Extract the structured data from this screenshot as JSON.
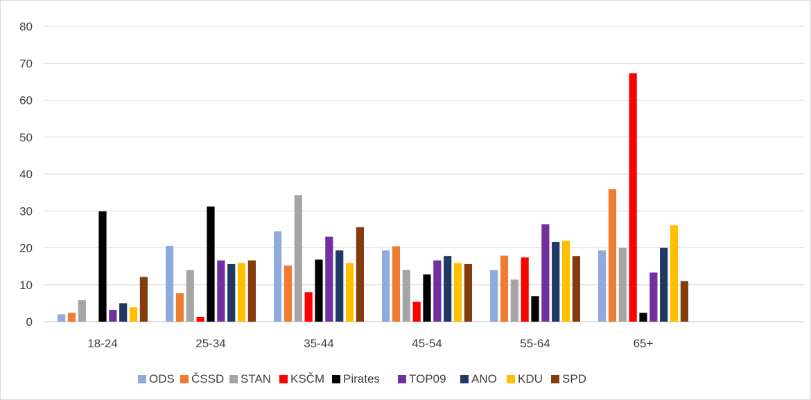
{
  "chart_data": {
    "type": "bar",
    "title": "",
    "xlabel": "",
    "ylabel": "",
    "ylim": [
      0,
      80
    ],
    "yticks": [
      0,
      10,
      20,
      30,
      40,
      50,
      60,
      70,
      80
    ],
    "grid": true,
    "legend_position": "bottom",
    "categories": [
      "18-24",
      "25-34",
      "35-44",
      "45-54",
      "55-64",
      "65+"
    ],
    "series": [
      {
        "name": "ODS",
        "color": "#8faadc",
        "values": [
          2,
          20.5,
          24.5,
          19.3,
          14,
          19.3
        ]
      },
      {
        "name": "ČSSD",
        "color": "#ed7d31",
        "values": [
          2.4,
          7.7,
          15.2,
          20.4,
          17.9,
          35.9
        ]
      },
      {
        "name": "STAN",
        "color": "#a5a5a5",
        "values": [
          5.8,
          14,
          34.3,
          14,
          11.4,
          20
        ]
      },
      {
        "name": "KSČM",
        "color": "#ff0000",
        "values": [
          0,
          1.3,
          8,
          5.4,
          17.4,
          67.3
        ]
      },
      {
        "name": "Pirates",
        "color": "#000000",
        "values": [
          29.9,
          31.2,
          16.8,
          12.8,
          6.9,
          2.4
        ]
      },
      {
        "name": "TOP09",
        "color": "#7030a0",
        "values": [
          3.2,
          16.6,
          23,
          16.6,
          26.4,
          13.3
        ]
      },
      {
        "name": "ANO",
        "color": "#203864",
        "values": [
          5,
          15.6,
          19.3,
          17.8,
          21.6,
          20
        ]
      },
      {
        "name": "KDU",
        "color": "#ffc000",
        "values": [
          3.9,
          15.9,
          15.9,
          15.9,
          21.9,
          26.1
        ]
      },
      {
        "name": "SPD",
        "color": "#843c0c",
        "values": [
          12.1,
          16.6,
          25.6,
          15.6,
          17.8,
          11
        ]
      }
    ]
  }
}
